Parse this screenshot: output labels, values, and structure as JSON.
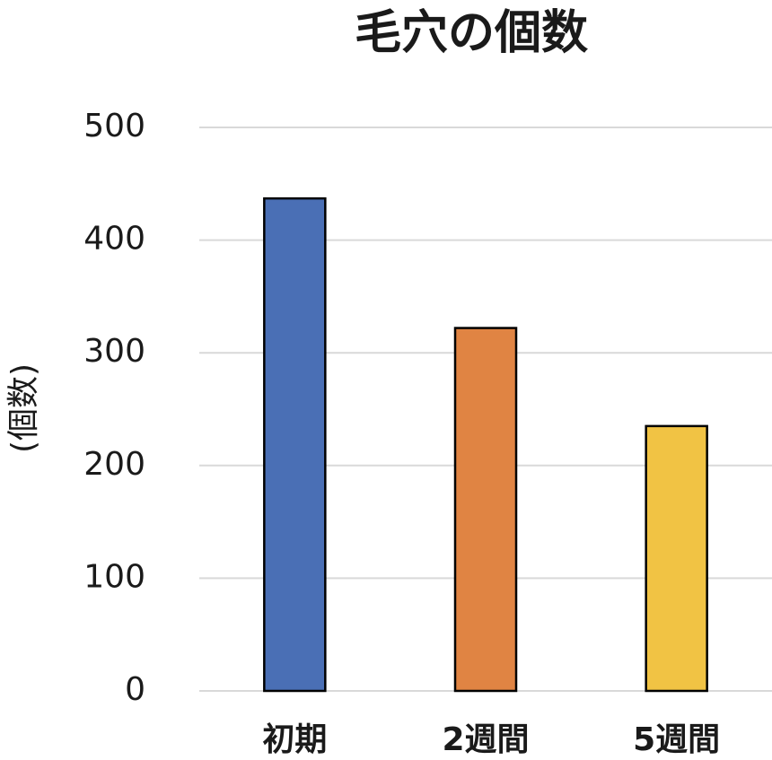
{
  "chart_data": {
    "type": "bar",
    "title": "毛穴の個数",
    "y_label": "(個数)",
    "categories": [
      "初期",
      "2週間",
      "5週間"
    ],
    "values": [
      437,
      322,
      235
    ],
    "colors": [
      "#4a6fb5",
      "#e08443",
      "#f1c344"
    ],
    "ylim": [
      0,
      500
    ],
    "yticks": [
      0,
      100,
      200,
      300,
      400,
      500
    ],
    "grid": true
  }
}
